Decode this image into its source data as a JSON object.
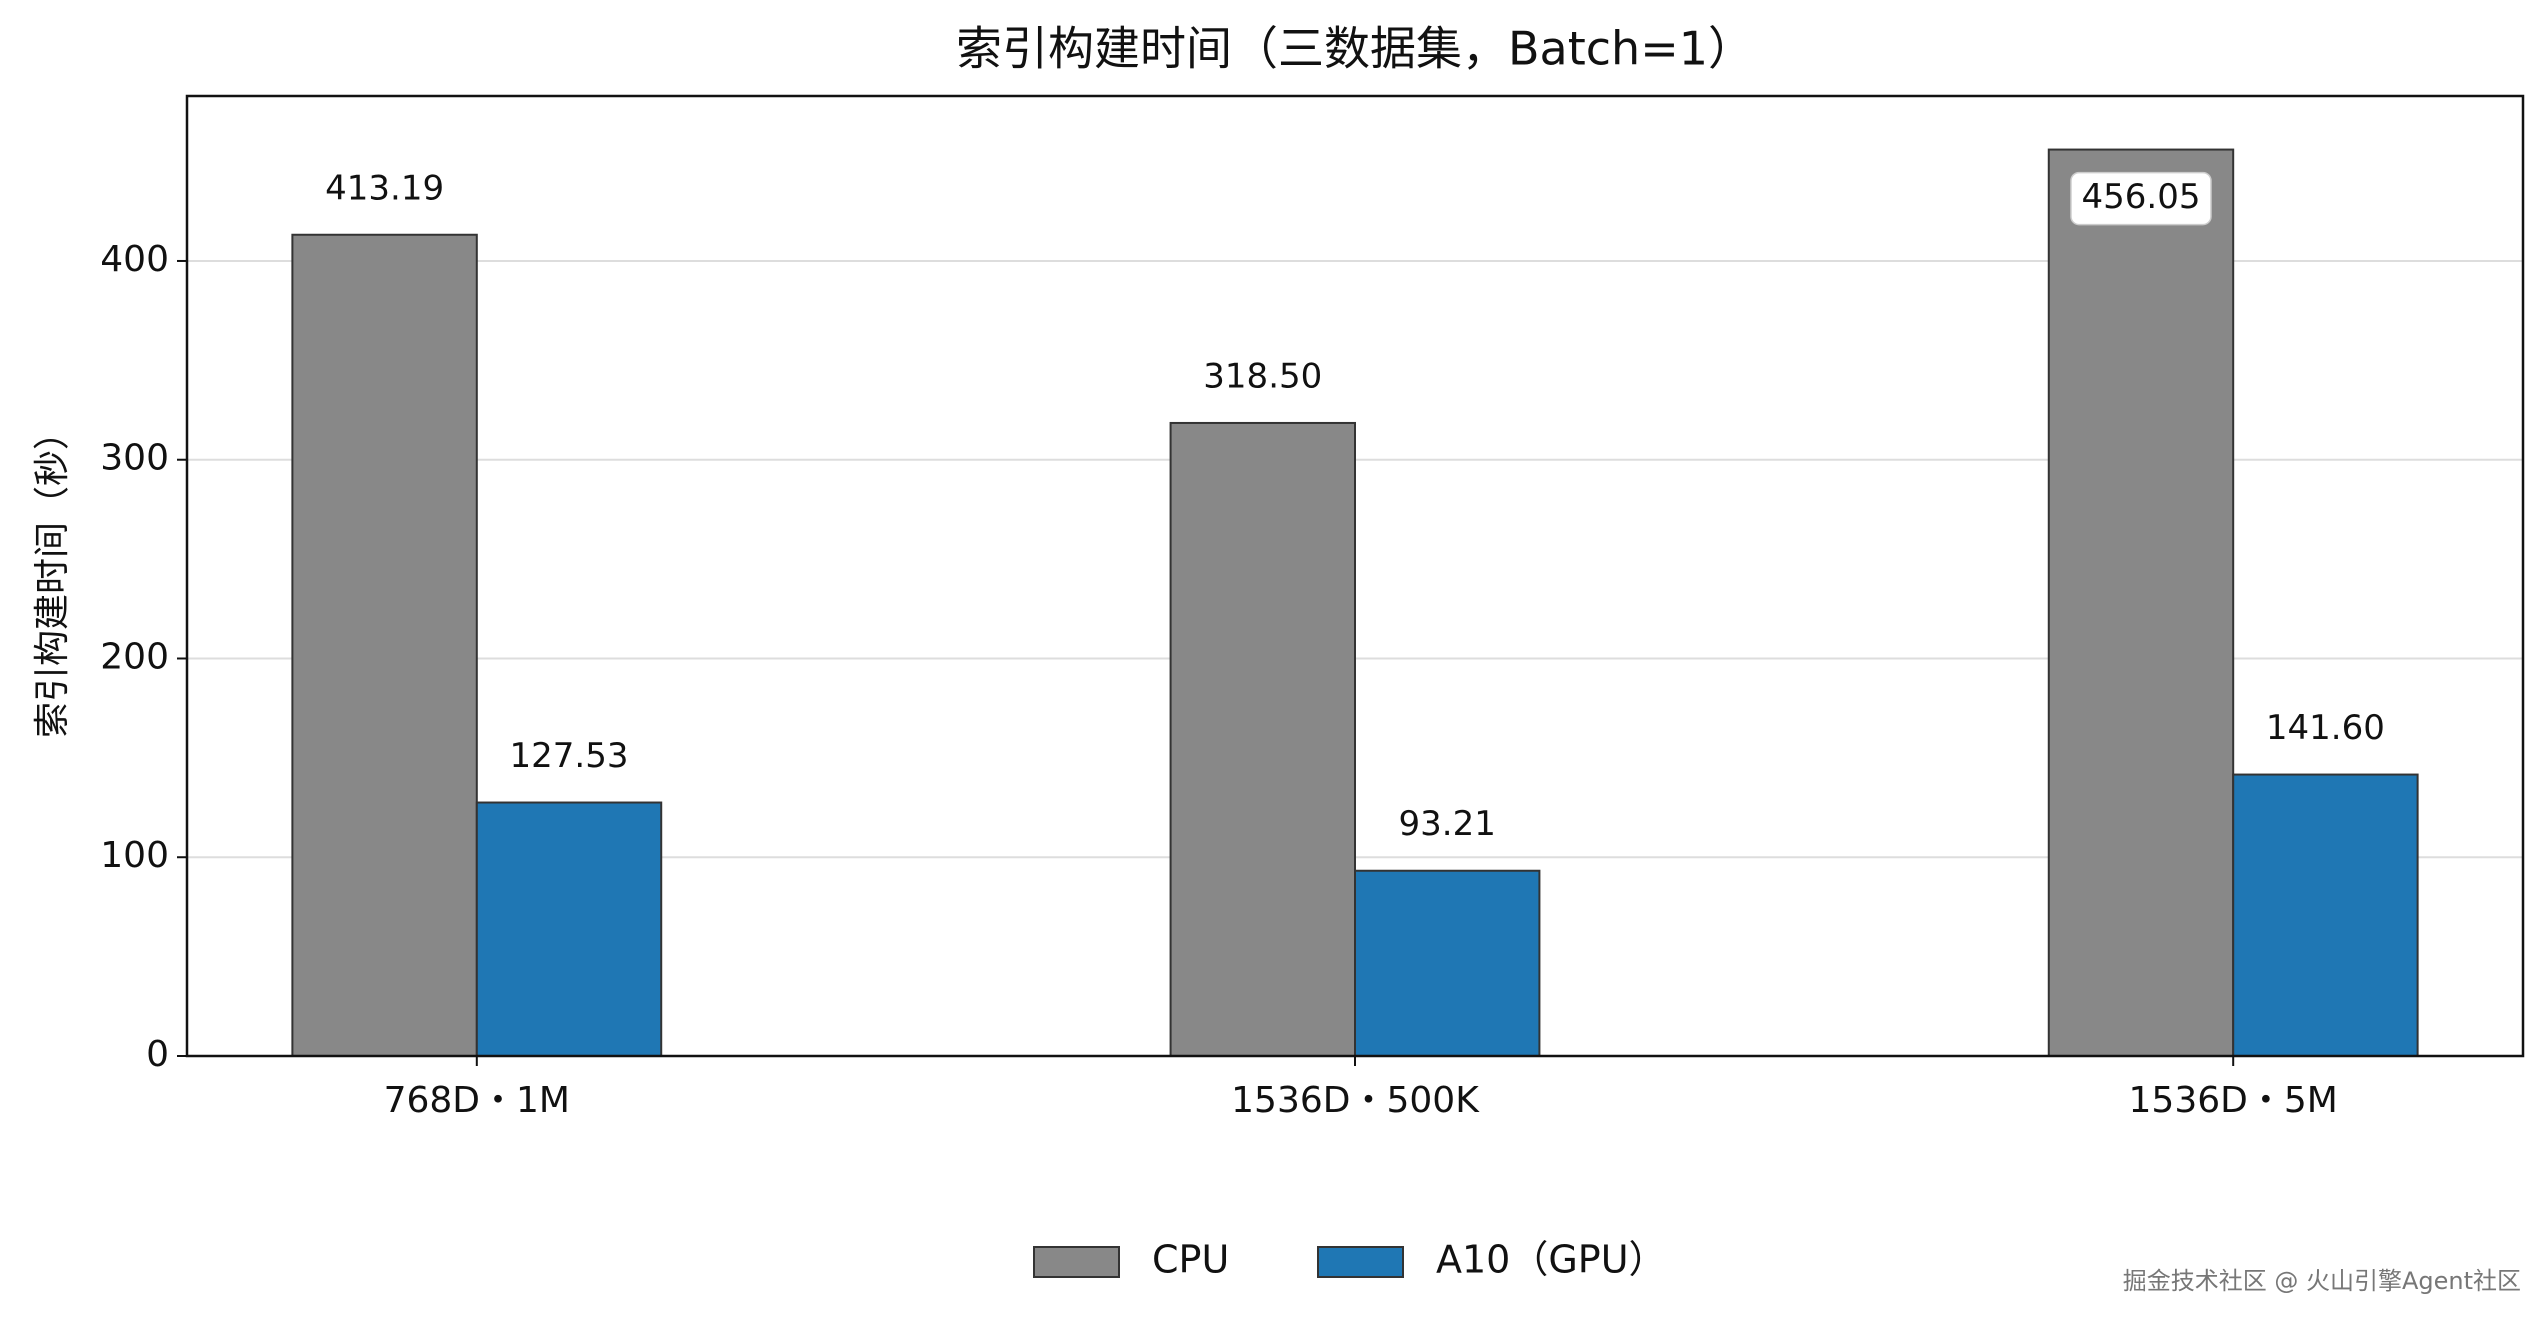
{
  "chart_data": {
    "type": "bar",
    "title": "索引构建时间（三数据集，Batch=1）",
    "y_label": "索引构建时间（秒）",
    "categories": [
      "768D・1M",
      "1536D・500K",
      "1536D・5M"
    ],
    "series": [
      {
        "name": "CPU",
        "color": "#888888",
        "values": [
          413.19,
          318.5,
          456.05
        ],
        "value_labels": [
          "413.19",
          "318.50",
          "456.05"
        ]
      },
      {
        "name": "A10（GPU）",
        "color": "#1f77b4",
        "values": [
          127.53,
          93.21,
          141.6
        ],
        "value_labels": [
          "127.53",
          "93.21",
          "141.60"
        ]
      }
    ],
    "ylim": [
      0,
      483
    ],
    "yticks": [
      0,
      100,
      200,
      300,
      400
    ],
    "grid": true,
    "legend": "bottom",
    "watermark": "掘金技术社区 @ 火山引擎Agent社区"
  }
}
